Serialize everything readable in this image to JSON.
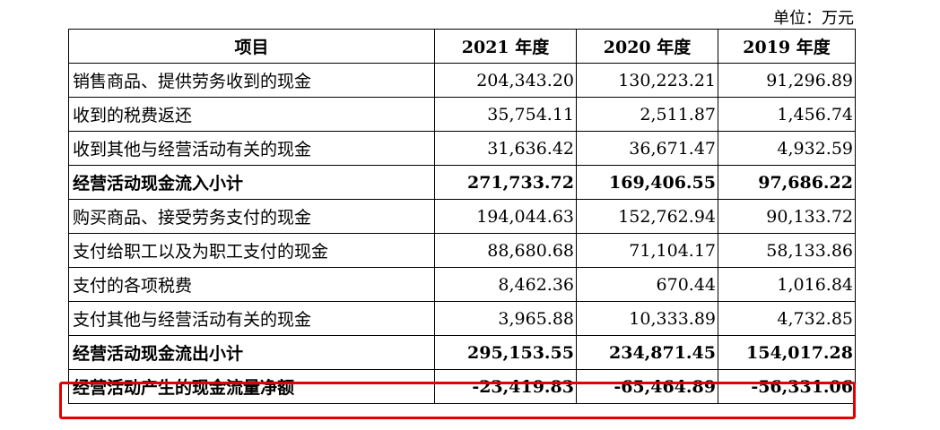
{
  "unit_label": "单位：万元",
  "columns": [
    "项目",
    "2021 年度",
    "2020 年度",
    "2019 年度"
  ],
  "rows": [
    {
      "item": "销售商品、提供劳务收到的现金",
      "y2021": "204,343.20",
      "y2020": "130,223.21",
      "y2019": "91,296.89"
    },
    {
      "item": "收到的税费返还",
      "y2021": "35,754.11",
      "y2020": "2,511.87",
      "y2019": "1,456.74"
    },
    {
      "item": "收到其他与经营活动有关的现金",
      "y2021": "31,636.42",
      "y2020": "36,671.47",
      "y2019": "4,932.59"
    },
    {
      "item": "经营活动现金流入小计",
      "y2021": "271,733.72",
      "y2020": "169,406.55",
      "y2019": "97,686.22"
    },
    {
      "item": "购买商品、接受劳务支付的现金",
      "y2021": "194,044.63",
      "y2020": "152,762.94",
      "y2019": "90,133.72"
    },
    {
      "item": "支付给职工以及为职工支付的现金",
      "y2021": "88,680.68",
      "y2020": "71,104.17",
      "y2019": "58,133.86"
    },
    {
      "item": "支付的各项税费",
      "y2021": "8,462.36",
      "y2020": "670.44",
      "y2019": "1,016.84"
    },
    {
      "item": "支付其他与经营活动有关的现金",
      "y2021": "3,965.88",
      "y2020": "10,333.89",
      "y2019": "4,732.85"
    },
    {
      "item": "经营活动现金流出小计",
      "y2021": "295,153.55",
      "y2020": "234,871.45",
      "y2019": "154,017.28"
    },
    {
      "item": "经营活动产生的现金流量净额",
      "y2021": "-23,419.83",
      "y2020": "-65,464.89",
      "y2019": "-56,331.06"
    }
  ],
  "highlight_color": "#e00000"
}
